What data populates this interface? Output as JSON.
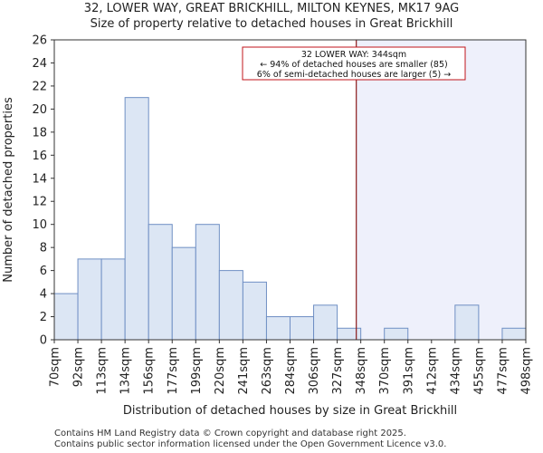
{
  "header": {
    "title_line1": "32, LOWER WAY, GREAT BRICKHILL, MILTON KEYNES, MK17 9AG",
    "title_line2": "Size of property relative to detached houses in Great Brickhill"
  },
  "footer": {
    "line1": "Contains HM Land Registry data © Crown copyright and database right 2025.",
    "line2": "Contains public sector information licensed under the Open Government Licence v3.0."
  },
  "chart_data": {
    "type": "bar",
    "title": "32, LOWER WAY, GREAT BRICKHILL, MILTON KEYNES, MK17 9AG",
    "subtitle": "Size of property relative to detached houses in Great Brickhill",
    "xlabel": "Distribution of detached houses by size in Great Brickhill",
    "ylabel": "Number of detached properties",
    "bin_edges": [
      70,
      92,
      113,
      134,
      156,
      177,
      199,
      220,
      241,
      263,
      284,
      306,
      327,
      348,
      370,
      391,
      412,
      434,
      455,
      477,
      498
    ],
    "tick_labels": [
      "70sqm",
      "92sqm",
      "113sqm",
      "134sqm",
      "156sqm",
      "177sqm",
      "199sqm",
      "220sqm",
      "241sqm",
      "263sqm",
      "284sqm",
      "306sqm",
      "327sqm",
      "348sqm",
      "370sqm",
      "391sqm",
      "412sqm",
      "434sqm",
      "455sqm",
      "477sqm",
      "498sqm"
    ],
    "values": [
      4,
      7,
      7,
      21,
      10,
      8,
      10,
      6,
      5,
      2,
      2,
      3,
      1,
      0,
      1,
      0,
      0,
      3,
      0,
      1
    ],
    "ylim": [
      0,
      26
    ],
    "yticks": [
      0,
      2,
      4,
      6,
      8,
      10,
      12,
      14,
      16,
      18,
      20,
      22,
      24,
      26
    ],
    "grid": false,
    "marker": {
      "value": 344,
      "color": "#8b1a1a",
      "shade_color": "#eef0fb"
    },
    "bar_fill": "#dce6f4",
    "bar_edge": "#6f8fc4",
    "annotation": {
      "line1": "32 LOWER WAY: 344sqm",
      "line2": "← 94% of detached houses are smaller (85)",
      "line3": "6% of semi-detached houses are larger (5) →",
      "border_color": "#c0151b"
    }
  }
}
